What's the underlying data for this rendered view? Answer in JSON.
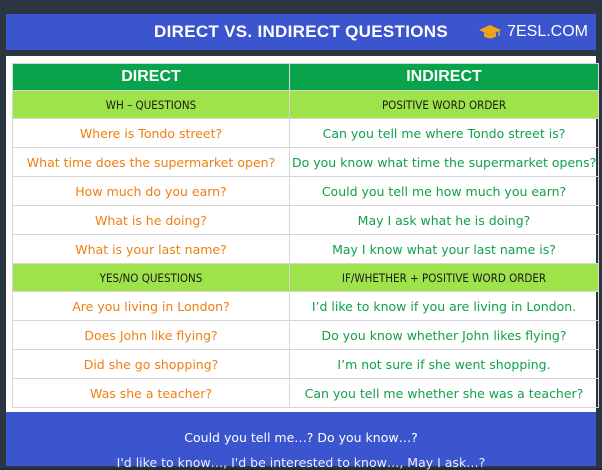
{
  "header": {
    "title": "DIRECT VS. INDIRECT QUESTIONS",
    "logo_text": "7ESL.COM",
    "logo_icon": "graduation-cap-icon"
  },
  "table": {
    "columns": [
      "DIRECT",
      "INDIRECT"
    ],
    "sections": [
      {
        "direct_label": "WH – QUESTIONS",
        "indirect_label": "POSITIVE WORD ORDER",
        "rows": [
          {
            "direct": "Where is Tondo street?",
            "indirect": "Can you tell me where Tondo street is?"
          },
          {
            "direct": "What time does the supermarket open?",
            "indirect": "Do you know what time the supermarket opens?"
          },
          {
            "direct": "How much do you earn?",
            "indirect": "Could you tell me how much you earn?"
          },
          {
            "direct": "What is he doing?",
            "indirect": "May I ask what he is doing?"
          },
          {
            "direct": "What is your last name?",
            "indirect": "May I know what your last name is?"
          }
        ]
      },
      {
        "direct_label": "YES/NO QUESTIONS",
        "indirect_label": "IF/WHETHER + POSITIVE WORD ORDER",
        "rows": [
          {
            "direct": "Are you living in London?",
            "indirect": "I’d like to know if you are living in London."
          },
          {
            "direct": "Does John like flying?",
            "indirect": "Do you know whether John likes flying?"
          },
          {
            "direct": "Did she go shopping?",
            "indirect": "I’m not sure if she went shopping."
          },
          {
            "direct": "Was she a teacher?",
            "indirect": "Can you tell me whether she was a teacher?"
          }
        ]
      }
    ]
  },
  "footer": {
    "line1": "Could you tell me…? Do you know…?",
    "line2": "I'd like to know…, I'd be interested to know…, May I ask…?"
  },
  "colors": {
    "header_blue": "#3b55cf",
    "column_green": "#09a34c",
    "section_lime": "#9ee34a",
    "direct_orange": "#f07e12",
    "indirect_green": "#10a14a",
    "logo_cap": "#f2a516"
  }
}
